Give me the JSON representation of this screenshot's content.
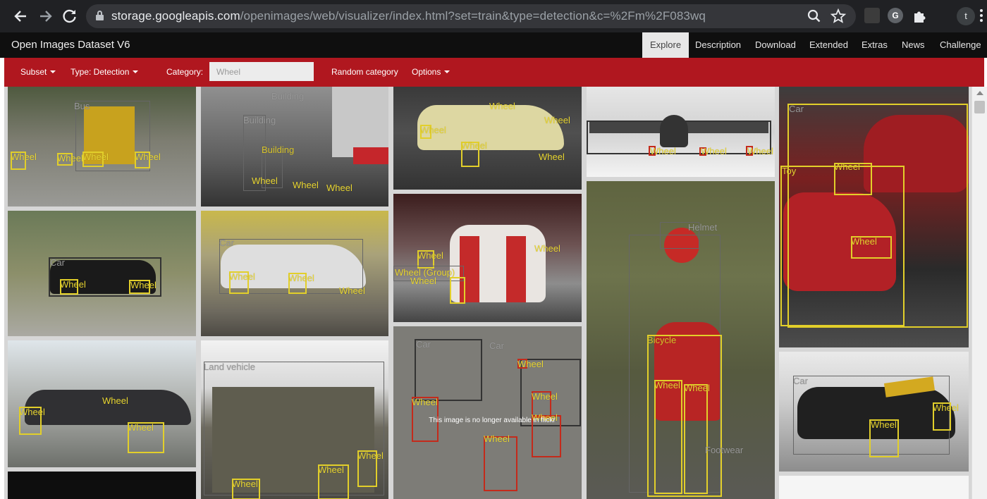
{
  "browser": {
    "url_host": "storage.googleapis.com",
    "url_path": "/openimages/web/visualizer/index.html?set=train&type=detection&c=%2Fm%2F083wq",
    "profile_initial": "t",
    "extension_letter": "G"
  },
  "site": {
    "title": "Open Images Dataset V6",
    "tabs": [
      "Explore",
      "Description",
      "Download",
      "Extended",
      "Extras",
      "News",
      "Challenge"
    ],
    "active_tab": "Explore"
  },
  "toolbar": {
    "subset_label": "Subset",
    "type_label": "Type: Detection",
    "category_label": "Category:",
    "category_value": "Wheel",
    "random_label": "Random category",
    "options_label": "Options"
  },
  "unavailable_text": "This image is no longer available in flickr",
  "labels": {
    "wheel": "Wheel",
    "car": "Car",
    "bus": "Bus",
    "building": "Building",
    "bicycle": "Bicycle",
    "toy": "Toy",
    "helmet": "Helmet",
    "land_vehicle": "Land vehicle",
    "wheel_group": "Wheel (Group)",
    "footwear": "Footwear"
  },
  "colors": {
    "accent_red": "#b0171f",
    "box_yellow": "#e2cf2a",
    "box_red": "#c42a1b"
  },
  "icons": [
    "back-arrow-icon",
    "forward-arrow-icon",
    "reload-icon",
    "lock-icon",
    "zoom-icon",
    "star-icon",
    "puzzle-icon",
    "menu-icon"
  ]
}
